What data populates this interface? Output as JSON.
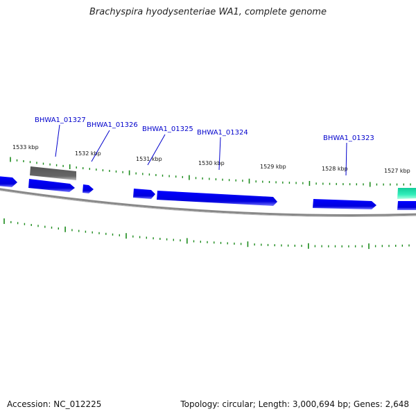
{
  "title": "Brachyspira hyodysenteriae WA1, complete genome",
  "footer": {
    "accession": "Accession: NC_012225",
    "summary": "Topology: circular; Length: 3,000,694 bp; Genes: 2,648"
  },
  "colors": {
    "gene_forward": "#0000ee",
    "gene_pseudo": "#666666",
    "gene_rna": "#22ddaa",
    "tick": "#1a8a1a",
    "backbone": "#888888",
    "label": "#0000cc"
  },
  "map": {
    "kbp_ticks": [
      "1533 kbp",
      "1532 kbp",
      "1531 kbp",
      "1530 kbp",
      "1529 kbp",
      "1528 kbp",
      "1527 kbp"
    ],
    "gene_labels": [
      "BHWA1_01327",
      "BHWA1_01326",
      "BHWA1_01325",
      "BHWA1_01324",
      "BHWA1_01323"
    ]
  }
}
